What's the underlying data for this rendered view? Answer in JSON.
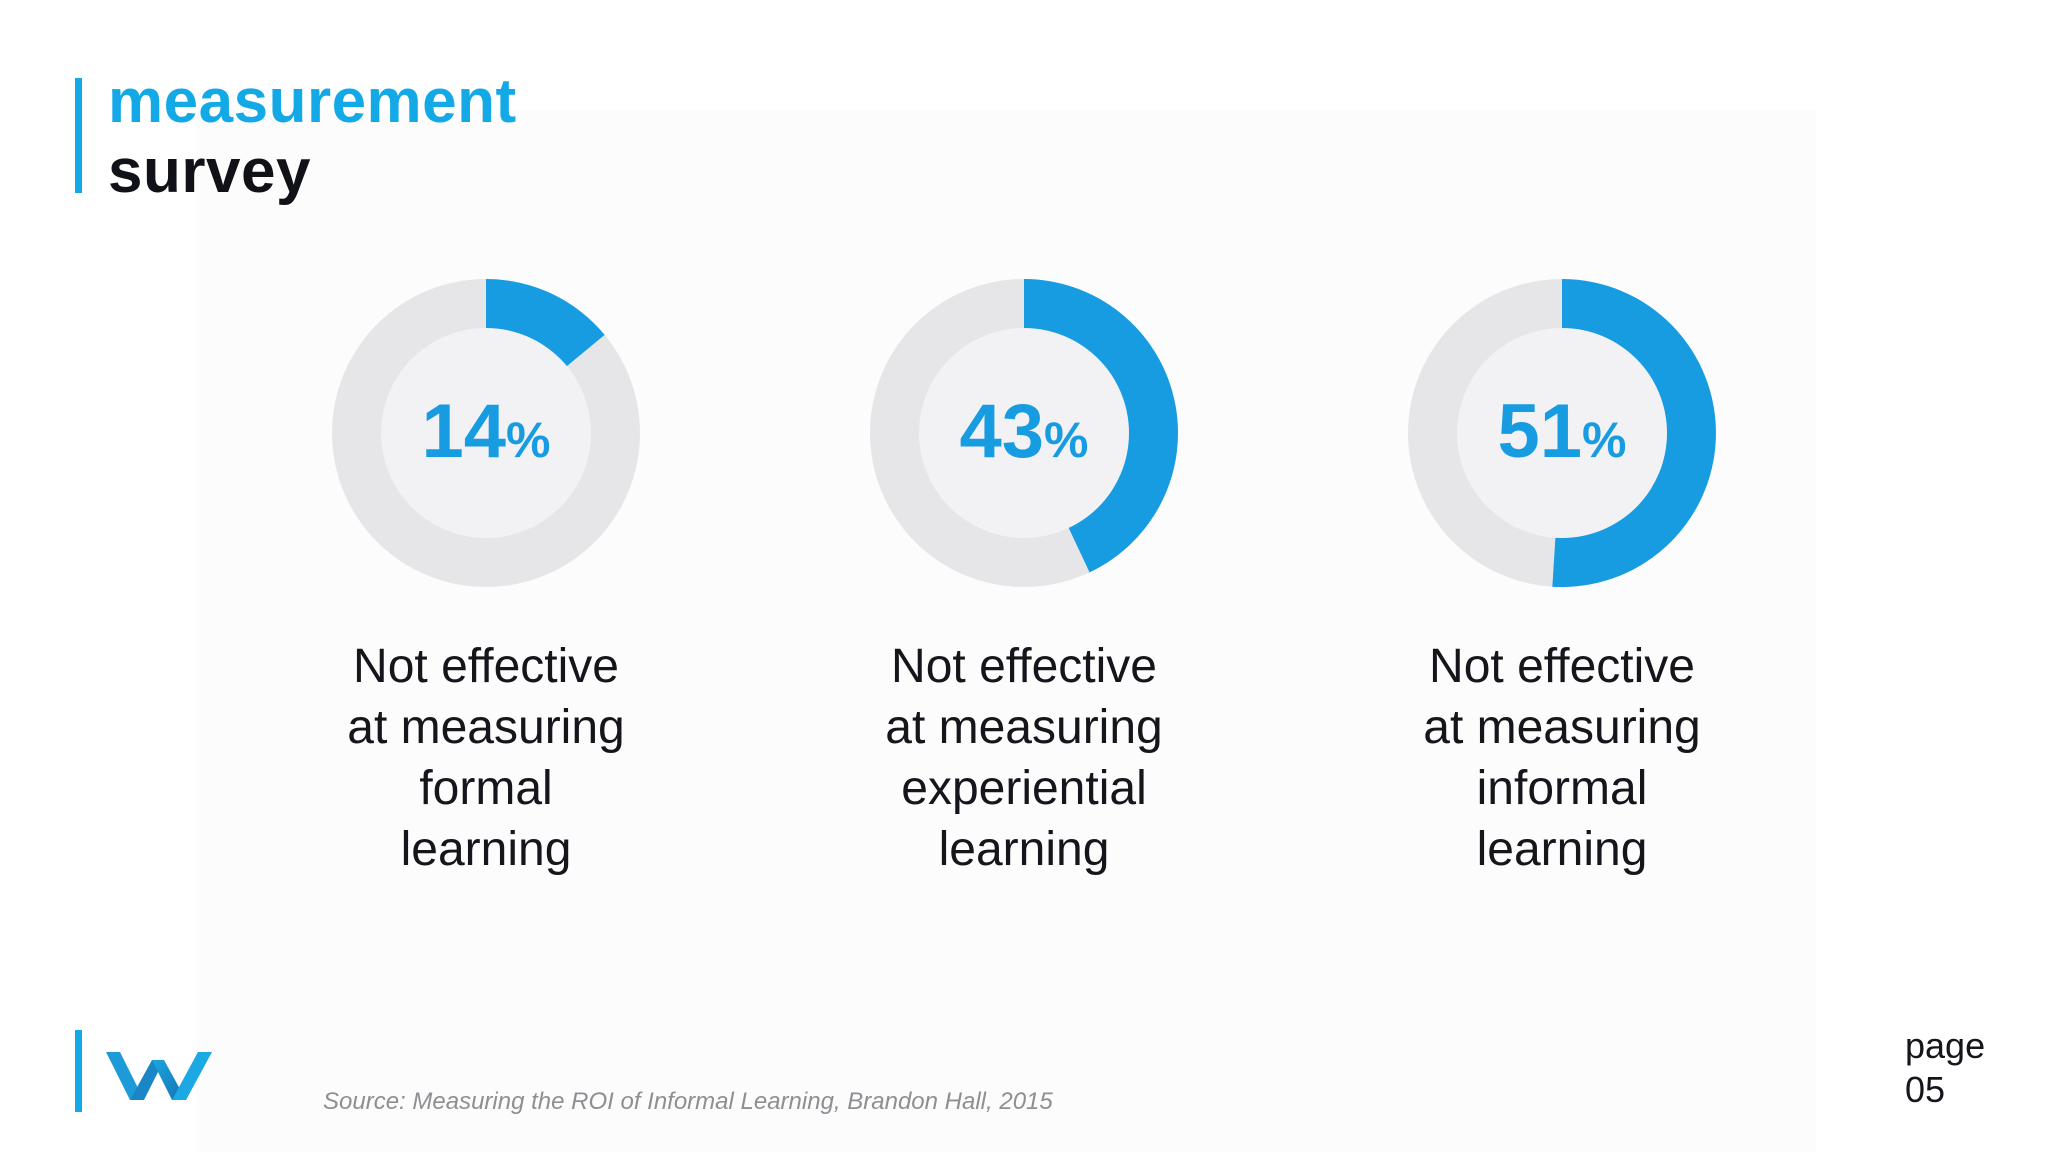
{
  "title": {
    "line1": "measurement",
    "line2": "survey"
  },
  "colors": {
    "accent": "#12a9e6",
    "donut_fill": "#179ce2",
    "donut_track": "#e6e6e9",
    "donut_inner": "#f2f2f5"
  },
  "chart_data": [
    {
      "type": "pie",
      "values": [
        14
      ],
      "value_label": "14",
      "unit": "%",
      "caption_lines": [
        "Not effective",
        "at measuring",
        "formal",
        "learning"
      ]
    },
    {
      "type": "pie",
      "values": [
        43
      ],
      "value_label": "43",
      "unit": "%",
      "caption_lines": [
        "Not effective",
        "at measuring",
        "experiential",
        "learning"
      ]
    },
    {
      "type": "pie",
      "values": [
        51
      ],
      "value_label": "51",
      "unit": "%",
      "caption_lines": [
        "Not effective",
        "at measuring",
        "informal",
        "learning"
      ]
    }
  ],
  "footer": {
    "logo_icon": "w-logo-icon",
    "source": "Source: Measuring the ROI of Informal Learning, Brandon Hall, 2015",
    "page_label": "page",
    "page_number": "05"
  }
}
